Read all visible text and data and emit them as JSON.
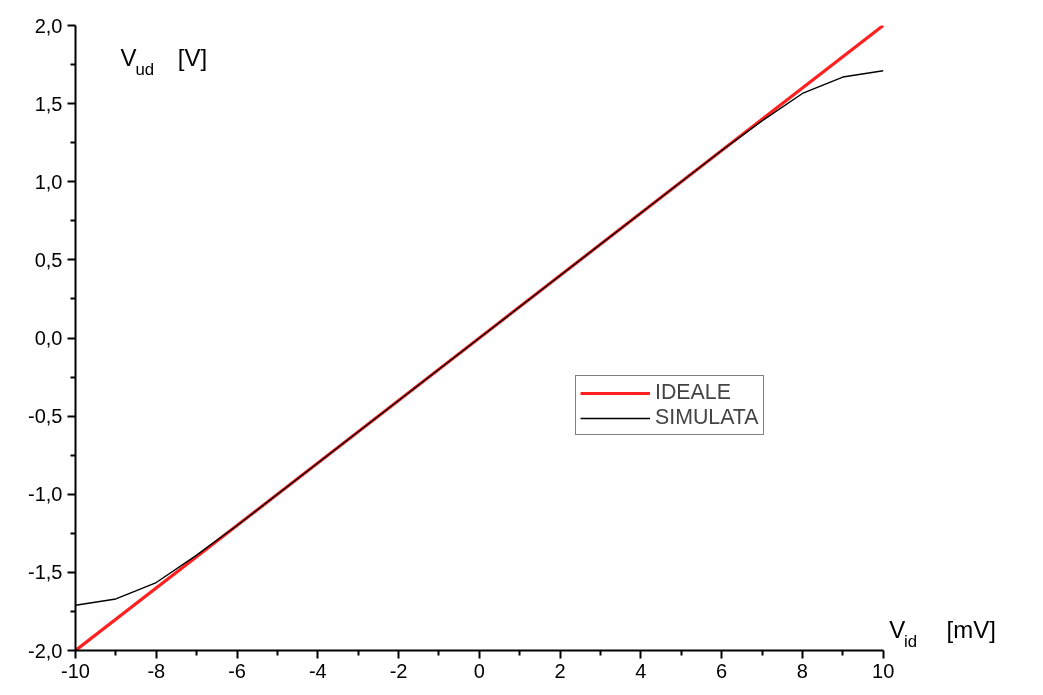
{
  "chart_data": {
    "type": "line",
    "xlabel": "V$_{id}$  [mV]",
    "ylabel": "V$_{ud}$  [V]",
    "series": [
      {
        "name": "IDEALE",
        "color": "#ff2020",
        "x": [
          -10,
          10
        ],
        "values": [
          -2.0,
          2.0
        ]
      },
      {
        "name": "SIMULATA",
        "color": "#000000",
        "x": [
          -10,
          -9,
          -8,
          -7,
          -6,
          -4,
          -2,
          0,
          2,
          4,
          6,
          7,
          8,
          9,
          10
        ],
        "values": [
          -1.71,
          -1.67,
          -1.565,
          -1.39,
          -1.2,
          -0.8,
          -0.4,
          0.0,
          0.4,
          0.8,
          1.2,
          1.39,
          1.565,
          1.67,
          1.71
        ]
      }
    ],
    "xlim": [
      -10,
      10
    ],
    "ylim": [
      -2.0,
      2.0
    ],
    "xticks": [
      -10,
      -8,
      -6,
      -4,
      -2,
      0,
      2,
      4,
      6,
      8,
      10
    ],
    "yticks": [
      {
        "value": -2.0,
        "label": "-2,0"
      },
      {
        "value": -1.5,
        "label": "-1,5"
      },
      {
        "value": -1.0,
        "label": "-1,0"
      },
      {
        "value": -0.5,
        "label": "-0,5"
      },
      {
        "value": 0.0,
        "label": "0,0"
      },
      {
        "value": 0.5,
        "label": "0,5"
      },
      {
        "value": 1.0,
        "label": "1,0"
      },
      {
        "value": 1.5,
        "label": "1,5"
      },
      {
        "value": 2.0,
        "label": "2,0"
      }
    ],
    "grid": false,
    "legend": "right",
    "marker": "none",
    "line_style": "solid"
  }
}
